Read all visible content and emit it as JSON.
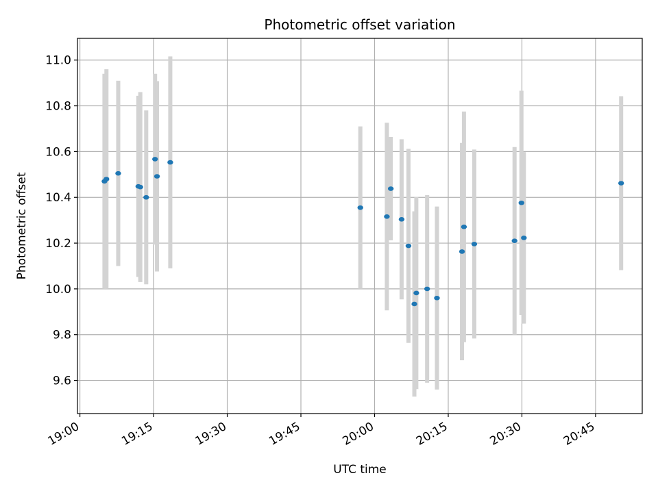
{
  "chart_data": {
    "type": "scatter",
    "title": "Photometric offset variation",
    "xlabel": "UTC time",
    "ylabel": "Photometric offset",
    "xlim": [
      "18:59:30",
      "20:54:30"
    ],
    "ylim": [
      9.455,
      11.095
    ],
    "x_ticks": [
      "19:00",
      "19:15",
      "19:30",
      "19:45",
      "20:00",
      "20:15",
      "20:30",
      "20:45"
    ],
    "y_ticks": [
      9.6,
      9.8,
      10.0,
      10.2,
      10.4,
      10.6,
      10.8,
      11.0
    ],
    "y_tick_labels": [
      "9.6",
      "9.8",
      "10.0",
      "10.2",
      "10.4",
      "10.6",
      "10.8",
      "11.0"
    ],
    "grid": true,
    "colors": {
      "point": "#1f77b4",
      "errorbar": "#d3d3d3",
      "grid": "#b0b0b0"
    },
    "points": [
      {
        "time": "19:05:00",
        "y": 10.47,
        "yerr_low": 0.47,
        "yerr_high": 0.47
      },
      {
        "time": "19:05:24",
        "y": 10.48,
        "yerr_low": 0.48,
        "yerr_high": 0.48
      },
      {
        "time": "19:07:48",
        "y": 10.505,
        "yerr_low": 0.405,
        "yerr_high": 0.405
      },
      {
        "time": "19:11:54",
        "y": 10.448,
        "yerr_low": 0.396,
        "yerr_high": 0.396
      },
      {
        "time": "19:12:18",
        "y": 10.445,
        "yerr_low": 0.415,
        "yerr_high": 0.415
      },
      {
        "time": "19:13:30",
        "y": 10.4,
        "yerr_low": 0.38,
        "yerr_high": 0.38
      },
      {
        "time": "19:15:18",
        "y": 10.567,
        "yerr_low": 0.373,
        "yerr_high": 0.373
      },
      {
        "time": "19:15:42",
        "y": 10.492,
        "yerr_low": 0.416,
        "yerr_high": 0.416
      },
      {
        "time": "19:18:24",
        "y": 10.553,
        "yerr_low": 0.463,
        "yerr_high": 0.463
      },
      {
        "time": "19:57:06",
        "y": 10.355,
        "yerr_low": 0.355,
        "yerr_high": 0.355
      },
      {
        "time": "20:02:30",
        "y": 10.316,
        "yerr_low": 0.41,
        "yerr_high": 0.41
      },
      {
        "time": "20:03:18",
        "y": 10.438,
        "yerr_low": 0.226,
        "yerr_high": 0.226
      },
      {
        "time": "20:05:30",
        "y": 10.304,
        "yerr_low": 0.35,
        "yerr_high": 0.35
      },
      {
        "time": "20:06:54",
        "y": 10.188,
        "yerr_low": 0.424,
        "yerr_high": 0.424
      },
      {
        "time": "20:08:06",
        "y": 9.934,
        "yerr_low": 0.405,
        "yerr_high": 0.405
      },
      {
        "time": "20:08:30",
        "y": 9.982,
        "yerr_low": 0.42,
        "yerr_high": 0.42
      },
      {
        "time": "20:10:42",
        "y": 10.0,
        "yerr_low": 0.41,
        "yerr_high": 0.41
      },
      {
        "time": "20:12:42",
        "y": 9.96,
        "yerr_low": 0.4,
        "yerr_high": 0.4
      },
      {
        "time": "20:17:48",
        "y": 10.163,
        "yerr_low": 0.475,
        "yerr_high": 0.475
      },
      {
        "time": "20:18:12",
        "y": 10.271,
        "yerr_low": 0.504,
        "yerr_high": 0.504
      },
      {
        "time": "20:20:18",
        "y": 10.196,
        "yerr_low": 0.413,
        "yerr_high": 0.413
      },
      {
        "time": "20:28:30",
        "y": 10.21,
        "yerr_low": 0.41,
        "yerr_high": 0.41
      },
      {
        "time": "20:29:54",
        "y": 10.376,
        "yerr_low": 0.49,
        "yerr_high": 0.49
      },
      {
        "time": "20:30:24",
        "y": 10.223,
        "yerr_low": 0.375,
        "yerr_high": 0.375
      },
      {
        "time": "20:50:12",
        "y": 10.462,
        "yerr_low": 0.38,
        "yerr_high": 0.38
      }
    ]
  }
}
